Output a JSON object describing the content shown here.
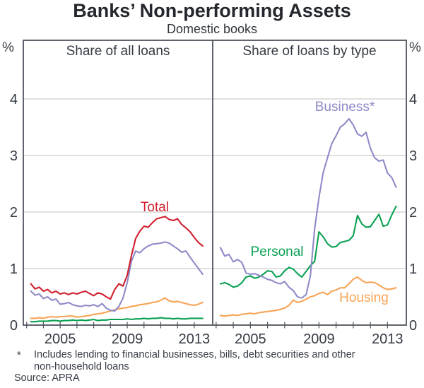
{
  "title": "Banks’ Non-performing Assets",
  "subtitle": "Domestic books",
  "unit": "%",
  "panels": {
    "left": "Share of all loans",
    "right": "Share of loans by type"
  },
  "series_labels": {
    "total": "Total",
    "business": "Business*",
    "personal": "Personal",
    "housing": "Housing"
  },
  "footnote": {
    "marker": "*",
    "text_line_1": "Includes lending to financial businesses, bills, debt securities and other",
    "text_line_2": "non-household loans",
    "source": "Source: APRA"
  },
  "colors": {
    "total": "#d0202e",
    "business": "#8e8bc8",
    "personal": "#0ba153",
    "housing": "#f7a456",
    "grid": "#c1c1c1",
    "frame": "#4e535c",
    "text": "#363c45"
  },
  "chart_data": [
    {
      "type": "line",
      "panel": "left",
      "title": "Share of all loans",
      "xlabel": "",
      "ylabel": "%",
      "x_start": 2003.25,
      "x_step": 0.25,
      "xlim": [
        2002.8,
        2014.1
      ],
      "ylim": [
        0,
        5.04
      ],
      "yticks": [
        0,
        1,
        2,
        3,
        4
      ],
      "year_ticks": [
        2003,
        2004,
        2005,
        2006,
        2007,
        2008,
        2009,
        2010,
        2011,
        2012,
        2013
      ],
      "year_labels": [
        2005,
        2009,
        2013
      ],
      "grid": true,
      "series": [
        {
          "name": "Housing",
          "color_key": "housing",
          "values": [
            0.12,
            0.12,
            0.13,
            0.12,
            0.14,
            0.15,
            0.14,
            0.15,
            0.15,
            0.16,
            0.16,
            0.14,
            0.15,
            0.16,
            0.17,
            0.19,
            0.2,
            0.21,
            0.23,
            0.25,
            0.27,
            0.29,
            0.3,
            0.31,
            0.33,
            0.34,
            0.36,
            0.37,
            0.38,
            0.4,
            0.41,
            0.44,
            0.48,
            0.43,
            0.41,
            0.42,
            0.4,
            0.38,
            0.36,
            0.35,
            0.37,
            0.4
          ]
        },
        {
          "name": "Personal",
          "color_key": "personal",
          "values": [
            0.06,
            0.06,
            0.07,
            0.07,
            0.07,
            0.08,
            0.08,
            0.07,
            0.08,
            0.08,
            0.09,
            0.08,
            0.09,
            0.08,
            0.09,
            0.1,
            0.08,
            0.09,
            0.09,
            0.1,
            0.1,
            0.1,
            0.1,
            0.11,
            0.1,
            0.11,
            0.11,
            0.12,
            0.11,
            0.12,
            0.12,
            0.13,
            0.12,
            0.12,
            0.11,
            0.12,
            0.11,
            0.11,
            0.12,
            0.12,
            0.12,
            0.12
          ]
        },
        {
          "name": "Business",
          "color_key": "business",
          "values": [
            0.6,
            0.53,
            0.55,
            0.47,
            0.5,
            0.44,
            0.46,
            0.37,
            0.38,
            0.4,
            0.36,
            0.34,
            0.33,
            0.35,
            0.34,
            0.36,
            0.33,
            0.38,
            0.3,
            0.26,
            0.25,
            0.33,
            0.48,
            0.75,
            1.13,
            1.31,
            1.28,
            1.35,
            1.4,
            1.43,
            1.44,
            1.45,
            1.47,
            1.45,
            1.4,
            1.35,
            1.29,
            1.31,
            1.2,
            1.1,
            1.0,
            0.9
          ]
        },
        {
          "name": "Total",
          "color_key": "total",
          "values": [
            0.73,
            0.64,
            0.67,
            0.6,
            0.63,
            0.57,
            0.6,
            0.55,
            0.57,
            0.54,
            0.57,
            0.55,
            0.58,
            0.6,
            0.56,
            0.52,
            0.57,
            0.55,
            0.5,
            0.46,
            0.63,
            0.73,
            0.69,
            0.88,
            1.23,
            1.53,
            1.66,
            1.75,
            1.73,
            1.81,
            1.88,
            1.9,
            1.92,
            1.87,
            1.85,
            1.88,
            1.78,
            1.72,
            1.65,
            1.55,
            1.46,
            1.4
          ]
        }
      ]
    },
    {
      "type": "line",
      "panel": "right",
      "title": "Share of loans by type",
      "xlabel": "",
      "ylabel": "%",
      "x_start": 2003.25,
      "x_step": 0.25,
      "xlim": [
        2002.8,
        2014.1
      ],
      "ylim": [
        0,
        5.04
      ],
      "yticks": [
        0,
        1,
        2,
        3,
        4
      ],
      "year_ticks": [
        2003,
        2004,
        2005,
        2006,
        2007,
        2008,
        2009,
        2010,
        2011,
        2012,
        2013
      ],
      "year_labels": [
        2005,
        2009,
        2013
      ],
      "grid": true,
      "series": [
        {
          "name": "Housing",
          "color_key": "housing",
          "values": [
            0.17,
            0.16,
            0.17,
            0.18,
            0.17,
            0.19,
            0.2,
            0.21,
            0.2,
            0.22,
            0.23,
            0.24,
            0.25,
            0.26,
            0.28,
            0.3,
            0.35,
            0.44,
            0.4,
            0.42,
            0.46,
            0.5,
            0.52,
            0.56,
            0.58,
            0.54,
            0.6,
            0.62,
            0.66,
            0.66,
            0.73,
            0.81,
            0.85,
            0.79,
            0.75,
            0.76,
            0.75,
            0.71,
            0.66,
            0.63,
            0.64,
            0.66
          ]
        },
        {
          "name": "Personal",
          "color_key": "personal",
          "values": [
            0.73,
            0.75,
            0.72,
            0.67,
            0.69,
            0.75,
            0.85,
            0.87,
            0.83,
            0.85,
            0.9,
            0.96,
            0.95,
            0.85,
            0.87,
            0.96,
            1.02,
            0.99,
            0.91,
            0.85,
            0.95,
            1.05,
            1.13,
            1.65,
            1.56,
            1.44,
            1.38,
            1.39,
            1.46,
            1.48,
            1.5,
            1.58,
            1.94,
            1.79,
            1.73,
            1.74,
            1.85,
            1.96,
            1.75,
            1.77,
            1.95,
            2.1
          ]
        },
        {
          "name": "Business",
          "color_key": "business",
          "values": [
            1.37,
            1.22,
            1.25,
            1.12,
            1.16,
            1.11,
            0.92,
            0.9,
            0.91,
            0.88,
            0.85,
            0.81,
            0.79,
            0.75,
            0.73,
            0.77,
            0.67,
            0.61,
            0.5,
            0.48,
            0.54,
            0.87,
            1.71,
            2.25,
            2.7,
            2.96,
            3.21,
            3.35,
            3.5,
            3.56,
            3.65,
            3.54,
            3.38,
            3.34,
            3.41,
            3.13,
            2.96,
            2.9,
            2.92,
            2.69,
            2.61,
            2.44
          ]
        }
      ]
    }
  ]
}
